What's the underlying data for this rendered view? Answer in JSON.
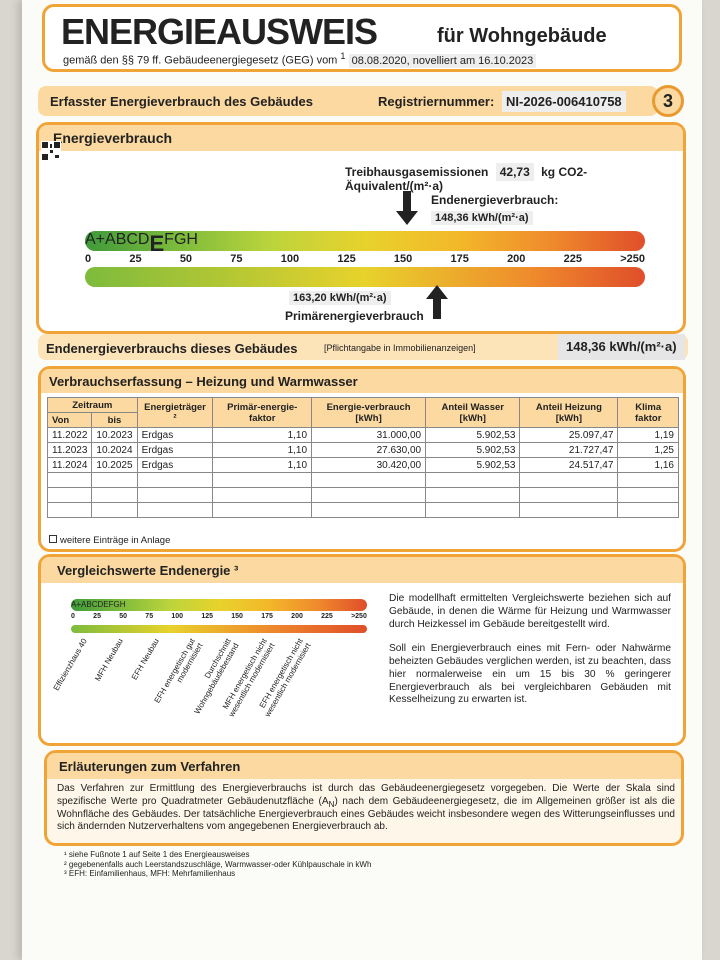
{
  "header": {
    "title": "ENERGIEAUSWEIS",
    "title_suffix": "für Wohngebäude",
    "subtitle": "gemäß den §§ 79 ff. Gebäudeenergiegesetz (GEG) vom",
    "footnote_mark": "1",
    "dates": "08.08.2020, novelliert am 16.10.2023"
  },
  "page_bar": {
    "heading": "Erfasster Energieverbrauch des Gebäudes",
    "reg_label": "Registriernummer:",
    "reg_number": "NI-2026-006410758",
    "page_number": "3"
  },
  "energy": {
    "heading": "Energieverbrauch",
    "emissions_label": "Treibhausgasemissionen",
    "emissions_value": "42,73",
    "emissions_unit": "kg CO2-Äquivalent/(m²·a)",
    "end_label": "Endenergieverbrauch:",
    "end_value": "148,36 kWh/(m²·a)",
    "classes": [
      "A+",
      "A",
      "B",
      "C",
      "D",
      "E",
      "F",
      "G",
      "H"
    ],
    "ticks": [
      "0",
      "25",
      "50",
      "75",
      "100",
      "125",
      "150",
      "175",
      "200",
      "225",
      ">250"
    ],
    "primary_value": "163,20 kWh/(m²·a)",
    "primary_label": "Primärenergieverbrauch"
  },
  "summary": {
    "label": "Endenergieverbrauchs dieses Gebäudes",
    "note": "[Pflichtangabe in Immobilienanzeigen]",
    "value": "148,36 kWh/(m²·a)"
  },
  "table": {
    "heading": "Verbrauchserfassung – Heizung und Warmwasser",
    "period": "Zeitraum",
    "from": "Von",
    "to": "bis",
    "columns": [
      "Energieträger ²",
      "Primär-energie-faktor",
      "Energie-verbrauch [kWh]",
      "Anteil Wasser [kWh]",
      "Anteil Heizung [kWh]",
      "Klima faktor"
    ],
    "rows": [
      [
        "11.2022",
        "10.2023",
        "Erdgas",
        "1,10",
        "31.000,00",
        "5.902,53",
        "25.097,47",
        "1,19"
      ],
      [
        "11.2023",
        "10.2024",
        "Erdgas",
        "1,10",
        "27.630,00",
        "5.902,53",
        "21.727,47",
        "1,25"
      ],
      [
        "11.2024",
        "10.2025",
        "Erdgas",
        "1,10",
        "30.420,00",
        "5.902,53",
        "24.517,47",
        "1,16"
      ]
    ],
    "note": "weitere Einträge in Anlage"
  },
  "comparison": {
    "heading": "Vergleichswerte Endenergie ³",
    "references": [
      "Effizienzhaus 40",
      "MFH Neubau",
      "EFH Neubau",
      "EFH energetisch gut modernisiert",
      "Durchschnitt Wohngebäudebestand",
      "MFH energetisch nicht wesentlich modernisiert",
      "EFH energetisch nicht wesentlich modernisiert"
    ],
    "paragraphs": [
      "Die modellhaft ermittelten Vergleichswerte beziehen sich auf Gebäude, in denen die Wärme für Heizung und Warmwasser durch Heizkessel im Gebäude bereitgestellt wird.",
      "Soll ein Energieverbrauch eines mit Fern- oder Nahwärme beheizten Gebäudes verglichen werden, ist zu beachten, dass hier normalerweise ein um 15 bis 30 % geringerer Energieverbrauch als bei vergleichbaren Gebäuden mit Kesselheizung zu erwarten ist."
    ]
  },
  "explanation": {
    "heading": "Erläuterungen zum Verfahren",
    "text_before": "Das Verfahren zur Ermittlung des Energieverbrauchs ist durch das Gebäudeenergiegesetz vorgegeben. Die Werte der Skala sind spezifische Werte pro Quadratmeter Gebäudenutzfläche (A",
    "subscript": "N",
    "text_after": ") nach dem Gebäudeenergiegesetz, die im Allgemeinen größer ist als die Wohnfläche des Gebäudes. Der tatsächliche Energieverbrauch eines Gebäudes weicht insbesondere wegen des Witterungseinflusses und sich ändernden Nutzerverhaltens vom angegebenen Energieverbrauch ab."
  },
  "footnotes": [
    "¹ siehe Fußnote 1 auf Seite 1 des Energieausweises",
    "² gegebenenfalls auch Leerstandszuschläge, Warmwasser-oder Kühlpauschale in kWh",
    "³ EFH: Einfamilienhaus, MFH: Mehrfamilienhaus"
  ]
}
